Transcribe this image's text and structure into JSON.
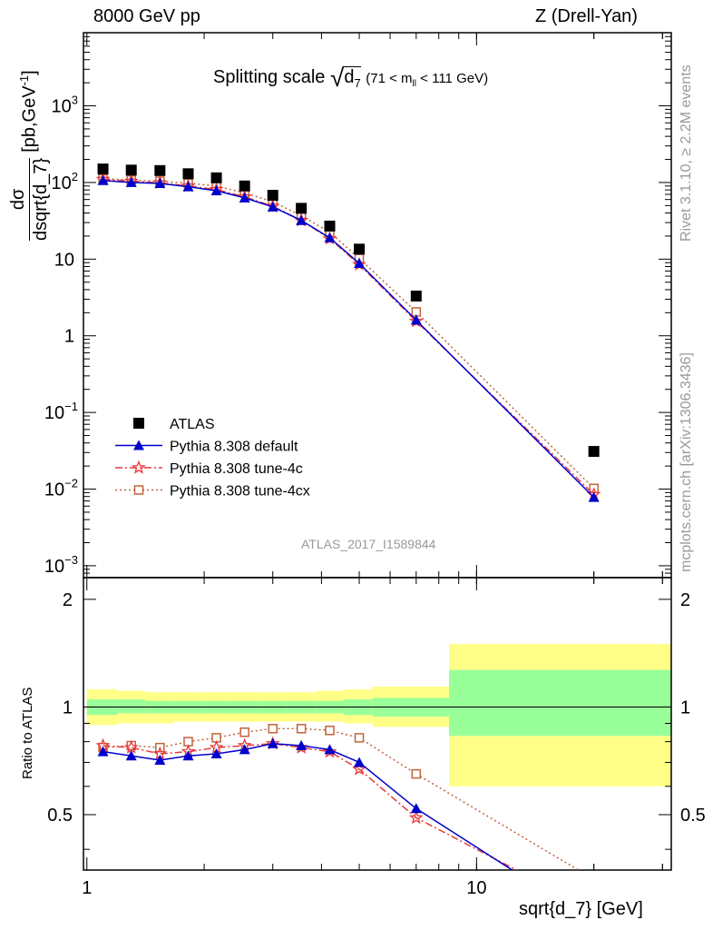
{
  "header": {
    "energy": "8000 GeV pp",
    "process": "Z (Drell-Yan)"
  },
  "side_labels": {
    "rivet": "Rivet 3.1.10, ≥ 2.2M events",
    "mcplots": "mcplots.cern.ch [arXiv:1306.3436]"
  },
  "chart_data": [
    {
      "type": "scatter",
      "title": "Splitting scale",
      "title_symbol": "d",
      "title_symbol_sub": "7",
      "title_range": "(71 < m",
      "title_range_sub": "ll",
      "title_range_tail": " < 111 GeV)",
      "ylabel_num": "dσ",
      "ylabel_den": "dsqrt{d_7}",
      "ylabel_unit": "[pb,GeV",
      "ylabel_unit_sup": "-1",
      "ylabel_unit_close": "]",
      "xscale": "log",
      "yscale": "log",
      "xlim": [
        0.98,
        31.6
      ],
      "ylim": [
        0.0007,
        9000
      ],
      "yticks": [
        {
          "v": 0.001,
          "base": "10",
          "exp": "−3"
        },
        {
          "v": 0.01,
          "base": "10",
          "exp": "−2"
        },
        {
          "v": 0.1,
          "base": "10",
          "exp": "−1"
        },
        {
          "v": 1,
          "base": "1",
          "exp": ""
        },
        {
          "v": 10,
          "base": "10",
          "exp": ""
        },
        {
          "v": 100,
          "base": "10",
          "exp": "2"
        },
        {
          "v": 1000,
          "base": "10",
          "exp": "3"
        }
      ],
      "legend_position": "lower-left",
      "watermark": "ATLAS_2017_I1589844",
      "x": [
        1.1,
        1.3,
        1.54,
        1.82,
        2.15,
        2.54,
        3.0,
        3.55,
        4.2,
        5.0,
        7.0,
        20.0
      ],
      "series": [
        {
          "name": "ATLAS",
          "color": "#000000",
          "marker": "square",
          "line": "none",
          "values": [
            150,
            145,
            143,
            130,
            115,
            90,
            68,
            46,
            27,
            13.5,
            3.3,
            0.031
          ]
        },
        {
          "name": "Pythia 8.308 default",
          "color": "#0000cc",
          "marker": "triangle",
          "line": "solid",
          "values": [
            106,
            100,
            97,
            88,
            78,
            63,
            48,
            32,
            19,
            8.8,
            1.6,
            0.0078
          ]
        },
        {
          "name": "Pythia 8.308 tune-4c",
          "color": "#e83a3a",
          "marker": "star",
          "line": "dashdot",
          "values": [
            110,
            104,
            99,
            90,
            81,
            65,
            49,
            32,
            18.5,
            8.5,
            1.55,
            0.0085
          ]
        },
        {
          "name": "Pythia 8.308 tune-4cx",
          "color": "#c0643a",
          "marker": "open-square",
          "line": "dotted",
          "values": [
            112,
            108,
            104,
            98,
            90,
            73,
            56,
            37,
            22.5,
            10.2,
            2.05,
            0.0102
          ]
        }
      ]
    },
    {
      "type": "line",
      "ylabel": "Ratio to ATLAS",
      "xlabel": "sqrt{d_7} [GeV]",
      "xscale": "log",
      "xlim": [
        0.98,
        31.6
      ],
      "ylim": [
        0.35,
        2.3
      ],
      "xticks": [
        {
          "v": 1,
          "label": "1"
        },
        {
          "v": 10,
          "label": "10"
        }
      ],
      "yticks": [
        {
          "v": 0.5,
          "label": "0.5"
        },
        {
          "v": 1,
          "label": "1"
        },
        {
          "v": 2,
          "label": "2"
        }
      ],
      "x": [
        1.1,
        1.3,
        1.54,
        1.82,
        2.15,
        2.54,
        3.0,
        3.55,
        4.2,
        5.0,
        7.0,
        20.0
      ],
      "bands": {
        "edges": [
          1.0,
          1.2,
          1.41,
          1.67,
          1.97,
          2.33,
          2.76,
          3.27,
          3.87,
          4.57,
          5.41,
          8.5,
          31.6
        ],
        "yellow": [
          [
            0.89,
            1.12
          ],
          [
            0.9,
            1.11
          ],
          [
            0.9,
            1.1
          ],
          [
            0.91,
            1.1
          ],
          [
            0.91,
            1.1
          ],
          [
            0.91,
            1.1
          ],
          [
            0.91,
            1.1
          ],
          [
            0.91,
            1.1
          ],
          [
            0.91,
            1.11
          ],
          [
            0.9,
            1.12
          ],
          [
            0.88,
            1.14
          ],
          [
            0.6,
            1.5
          ]
        ],
        "green": [
          [
            0.95,
            1.05
          ],
          [
            0.96,
            1.05
          ],
          [
            0.96,
            1.04
          ],
          [
            0.96,
            1.04
          ],
          [
            0.96,
            1.04
          ],
          [
            0.96,
            1.04
          ],
          [
            0.96,
            1.04
          ],
          [
            0.96,
            1.04
          ],
          [
            0.96,
            1.04
          ],
          [
            0.95,
            1.05
          ],
          [
            0.94,
            1.06
          ],
          [
            0.83,
            1.27
          ]
        ]
      },
      "series": [
        {
          "name": "Pythia 8.308 default",
          "color": "#0000cc",
          "marker": "triangle",
          "line": "solid",
          "values": [
            0.75,
            0.73,
            0.71,
            0.73,
            0.74,
            0.76,
            0.79,
            0.78,
            0.76,
            0.7,
            0.52,
            0.25
          ]
        },
        {
          "name": "Pythia 8.308 tune-4c",
          "color": "#e83a3a",
          "marker": "star",
          "line": "dashdot",
          "values": [
            0.78,
            0.77,
            0.74,
            0.75,
            0.77,
            0.78,
            0.79,
            0.77,
            0.75,
            0.67,
            0.49,
            0.27
          ]
        },
        {
          "name": "Pythia 8.308 tune-4cx",
          "color": "#c0643a",
          "marker": "open-square",
          "line": "dotted",
          "values": [
            0.77,
            0.78,
            0.77,
            0.8,
            0.82,
            0.85,
            0.87,
            0.87,
            0.86,
            0.82,
            0.65,
            0.33
          ]
        }
      ]
    }
  ]
}
